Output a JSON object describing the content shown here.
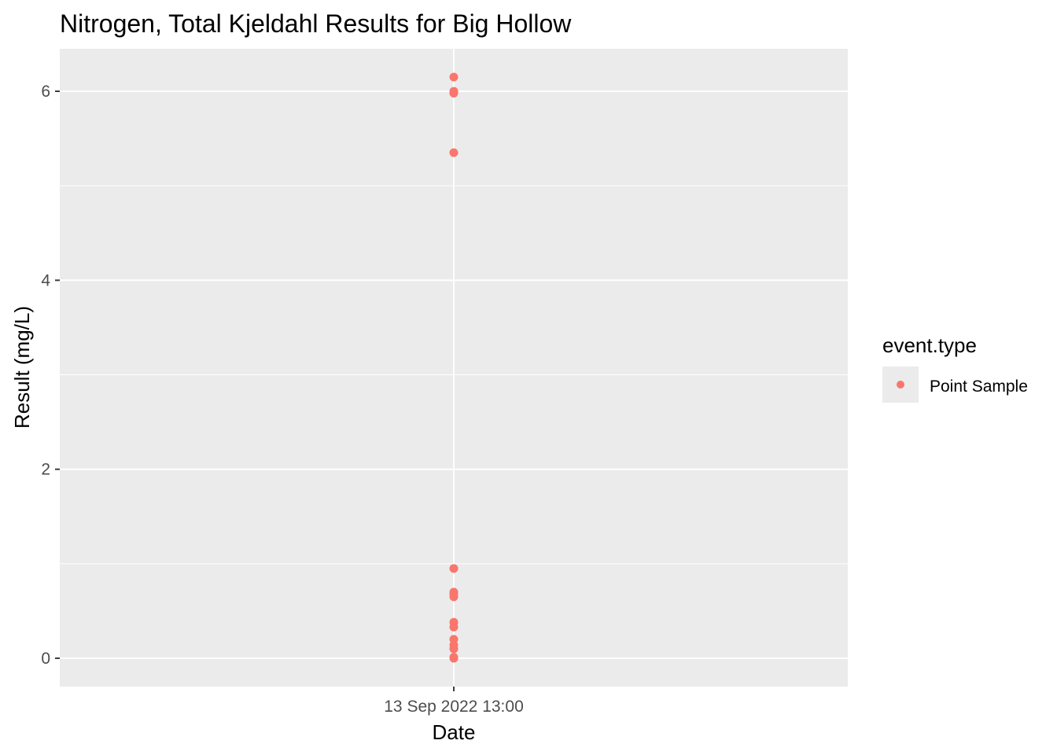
{
  "chart_data": {
    "type": "scatter",
    "title": "Nitrogen, Total Kjeldahl Results for Big Hollow",
    "xlabel": "Date",
    "ylabel": "Result (mg/L)",
    "x_ticks": [
      "13 Sep 2022 13:00"
    ],
    "y_ticks": [
      0,
      2,
      4,
      6
    ],
    "ylim": [
      -0.3,
      6.45
    ],
    "grid": true,
    "panel_background": "#EBEBEB",
    "legend": {
      "title": "event.type",
      "position": "right",
      "entries": [
        {
          "label": "Point Sample",
          "color": "#F8766D"
        }
      ]
    },
    "series": [
      {
        "name": "Point Sample",
        "color": "#F8766D",
        "x": "13 Sep 2022 13:00",
        "values": [
          6.15,
          6.0,
          5.98,
          5.35,
          0.95,
          0.7,
          0.68,
          0.65,
          0.38,
          0.33,
          0.2,
          0.14,
          0.1,
          0.01,
          0.0
        ]
      }
    ]
  }
}
